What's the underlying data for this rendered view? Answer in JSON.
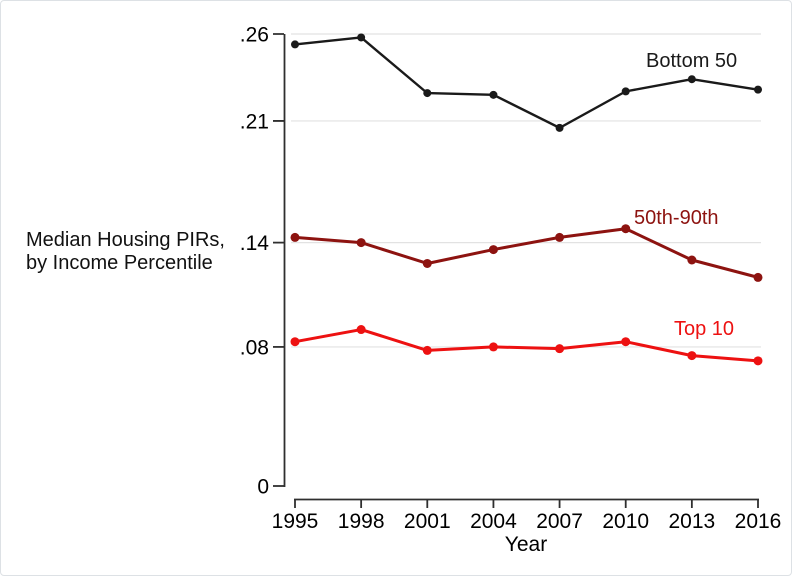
{
  "chart_data": {
    "type": "line",
    "title": "",
    "xlabel": "Year",
    "ylabel_lines": [
      "Median Housing PIRs,",
      "by Income Percentile"
    ],
    "x": [
      1995,
      1998,
      2001,
      2004,
      2007,
      2010,
      2013,
      2016
    ],
    "ylim": [
      0,
      0.26
    ],
    "yticks": [
      0,
      0.08,
      0.14,
      0.21,
      0.26
    ],
    "ytick_labels": [
      "0",
      ".08",
      ".14",
      ".21",
      ".26"
    ],
    "grid": "horizontal-light-gray-at-nonzero-ticks",
    "legend_position": "inline-labels-near-lines",
    "series": [
      {
        "name": "Bottom 50",
        "color": "#1a1a1a",
        "values": [
          0.254,
          0.258,
          0.226,
          0.225,
          0.206,
          0.227,
          0.234,
          0.228
        ]
      },
      {
        "name": "50th-90th",
        "color": "#8d1310",
        "values": [
          0.143,
          0.14,
          0.128,
          0.136,
          0.143,
          0.148,
          0.13,
          0.12
        ]
      },
      {
        "name": "Top 10",
        "color": "#ed1111",
        "values": [
          0.083,
          0.09,
          0.078,
          0.08,
          0.079,
          0.083,
          0.075,
          0.072
        ]
      }
    ],
    "colors": {
      "axis": "#2f2f2f",
      "gridline": "#e2e2e2",
      "tick_label": "#000000"
    }
  }
}
